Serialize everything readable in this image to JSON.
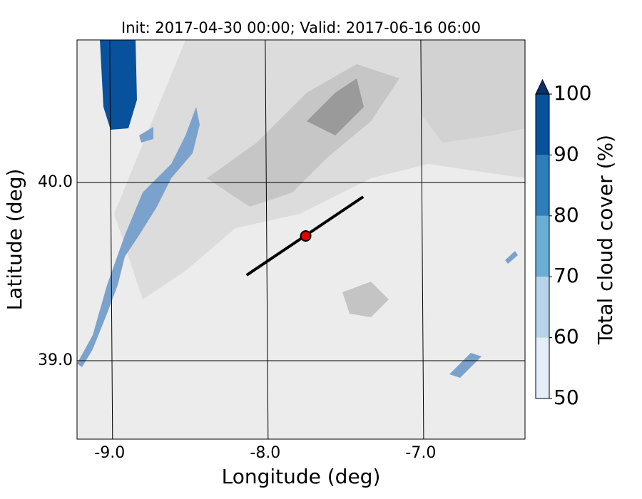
{
  "chart_data": {
    "type": "map",
    "title": "Init: 2017-04-30 00:00; Valid: 2017-06-16 06:00",
    "x_label": "Longitude (deg)",
    "y_label": "Latitude (deg)",
    "xlim": [
      -9.21,
      -6.33
    ],
    "ylim": [
      38.56,
      40.8
    ],
    "xticks": [
      {
        "value": -9,
        "label": "-9.0"
      },
      {
        "value": -8,
        "label": "-8.0"
      },
      {
        "value": -7,
        "label": "-7.0"
      }
    ],
    "yticks": [
      {
        "value": 39,
        "label": "39.0"
      },
      {
        "value": 40,
        "label": "40.0"
      }
    ],
    "grid": true,
    "cross_section": {
      "x": [
        -8.12,
        -7.37
      ],
      "y": [
        39.48,
        39.92
      ],
      "color": "#000000"
    },
    "point": {
      "x": -7.74,
      "y": 39.7,
      "color": "#e00000"
    },
    "colorbar": {
      "label": "Total cloud cover (%)",
      "lim": [
        50,
        100
      ],
      "ticks": [
        50,
        60,
        70,
        80,
        90,
        100
      ],
      "colors": [
        "#e3eef8",
        "#b7d4ea",
        "#6aaed6",
        "#2e7ebc",
        "#08519c"
      ],
      "extend_color": "#08306b"
    }
  }
}
